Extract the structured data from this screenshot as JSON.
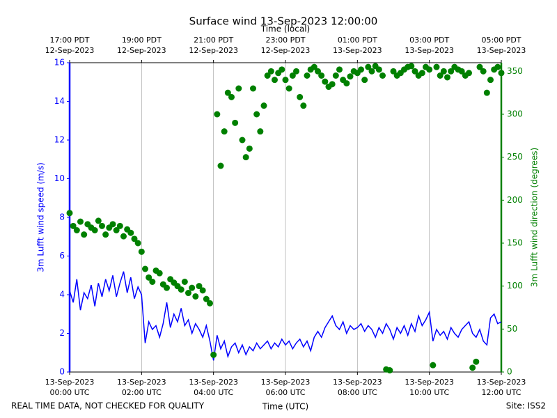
{
  "chart_data": {
    "type": "line",
    "title": "Surface wind 13-Sep-2023 12:00:00",
    "x2label": "Time (local)",
    "xlabel": "Time (UTC)",
    "ylabel": "3m Lufft wind speed (m/s)",
    "y2label": "3m Lufft wind direction (degrees)",
    "footer_left": "REAL TIME DATA, NOT CHECKED FOR QUALITY",
    "footer_right": "Site: ISS2",
    "grid": true,
    "xlim": [
      0,
      12
    ],
    "ylim": [
      0,
      16
    ],
    "y2lim": [
      0,
      360
    ],
    "yticks": [
      0,
      2,
      4,
      6,
      8,
      10,
      12,
      14,
      16
    ],
    "y2ticks": [
      0,
      50,
      100,
      150,
      200,
      250,
      300,
      350
    ],
    "xticks": [
      {
        "value": 0,
        "date": "13-Sep-2023",
        "label": "00:00 UTC"
      },
      {
        "value": 2,
        "date": "13-Sep-2023",
        "label": "02:00 UTC"
      },
      {
        "value": 4,
        "date": "13-Sep-2023",
        "label": "04:00 UTC"
      },
      {
        "value": 6,
        "date": "13-Sep-2023",
        "label": "06:00 UTC"
      },
      {
        "value": 8,
        "date": "13-Sep-2023",
        "label": "08:00 UTC"
      },
      {
        "value": 10,
        "date": "13-Sep-2023",
        "label": "10:00 UTC"
      },
      {
        "value": 12,
        "date": "13-Sep-2023",
        "label": "12:00 UTC"
      }
    ],
    "x2ticks": [
      {
        "value": 0,
        "date": "12-Sep-2023",
        "label": "17:00 PDT"
      },
      {
        "value": 2,
        "date": "12-Sep-2023",
        "label": "19:00 PDT"
      },
      {
        "value": 4,
        "date": "12-Sep-2023",
        "label": "21:00 PDT"
      },
      {
        "value": 6,
        "date": "12-Sep-2023",
        "label": "23:00 PDT"
      },
      {
        "value": 8,
        "date": "13-Sep-2023",
        "label": "01:00 PDT"
      },
      {
        "value": 10,
        "date": "13-Sep-2023",
        "label": "03:00 PDT"
      },
      {
        "value": 12,
        "date": "13-Sep-2023",
        "label": "05:00 PDT"
      }
    ],
    "x": [
      0,
      0.1,
      0.2,
      0.3,
      0.4,
      0.5,
      0.6,
      0.7,
      0.8,
      0.9,
      1,
      1.1,
      1.2,
      1.3,
      1.4,
      1.5,
      1.6,
      1.7,
      1.8,
      1.9,
      2,
      2.1,
      2.2,
      2.3,
      2.4,
      2.5,
      2.6,
      2.7,
      2.8,
      2.9,
      3,
      3.1,
      3.2,
      3.3,
      3.4,
      3.5,
      3.6,
      3.7,
      3.8,
      3.9,
      4,
      4.1,
      4.2,
      4.3,
      4.4,
      4.5,
      4.6,
      4.7,
      4.8,
      4.9,
      5,
      5.1,
      5.2,
      5.3,
      5.4,
      5.5,
      5.6,
      5.7,
      5.8,
      5.9,
      6,
      6.1,
      6.2,
      6.3,
      6.4,
      6.5,
      6.6,
      6.7,
      6.8,
      6.9,
      7,
      7.1,
      7.2,
      7.3,
      7.4,
      7.5,
      7.6,
      7.7,
      7.8,
      7.9,
      8,
      8.1,
      8.2,
      8.3,
      8.4,
      8.5,
      8.6,
      8.7,
      8.8,
      8.9,
      9,
      9.1,
      9.2,
      9.3,
      9.4,
      9.5,
      9.6,
      9.7,
      9.8,
      9.9,
      10,
      10.1,
      10.2,
      10.3,
      10.4,
      10.5,
      10.6,
      10.7,
      10.8,
      10.9,
      11,
      11.1,
      11.2,
      11.3,
      11.4,
      11.5,
      11.6,
      11.7,
      11.8,
      11.9,
      12
    ],
    "series": [
      {
        "color": "#0000ff",
        "axis": "y",
        "style": "line",
        "values": [
          4.2,
          3.6,
          4.8,
          3.2,
          4.1,
          3.8,
          4.5,
          3.4,
          4.6,
          3.9,
          4.8,
          4.2,
          5.0,
          3.9,
          4.6,
          5.2,
          4.1,
          4.9,
          3.8,
          4.4,
          4.0,
          1.5,
          2.6,
          2.2,
          2.4,
          1.8,
          2.5,
          3.6,
          2.3,
          3.0,
          2.6,
          3.3,
          2.4,
          2.7,
          2.0,
          2.5,
          2.2,
          1.8,
          2.4,
          1.6,
          0.6,
          1.9,
          1.2,
          1.6,
          0.8,
          1.3,
          1.5,
          1.0,
          1.4,
          0.9,
          1.3,
          1.1,
          1.5,
          1.2,
          1.4,
          1.6,
          1.2,
          1.5,
          1.3,
          1.7,
          1.4,
          1.6,
          1.2,
          1.5,
          1.7,
          1.3,
          1.6,
          1.1,
          1.8,
          2.1,
          1.8,
          2.3,
          2.6,
          2.9,
          2.4,
          2.2,
          2.6,
          2.0,
          2.4,
          2.2,
          2.3,
          2.5,
          2.1,
          2.4,
          2.2,
          1.8,
          2.3,
          2.0,
          2.5,
          2.2,
          1.7,
          2.3,
          2.0,
          2.4,
          1.9,
          2.5,
          2.1,
          2.9,
          2.4,
          2.7,
          3.1,
          1.6,
          2.2,
          1.9,
          2.1,
          1.7,
          2.3,
          2.0,
          1.8,
          2.2,
          2.4,
          2.6,
          2.0,
          1.8,
          2.2,
          1.6,
          1.4,
          2.8,
          3.0,
          2.5,
          2.6
        ]
      },
      {
        "color": "#008000",
        "axis": "y2",
        "style": "scatter",
        "values": [
          185,
          170,
          165,
          175,
          160,
          172,
          168,
          165,
          176,
          170,
          160,
          168,
          172,
          165,
          170,
          158,
          166,
          162,
          155,
          150,
          140,
          120,
          110,
          105,
          118,
          115,
          102,
          98,
          108,
          104,
          100,
          96,
          105,
          92,
          98,
          88,
          100,
          95,
          85,
          80,
          20,
          300,
          240,
          280,
          325,
          320,
          290,
          330,
          270,
          250,
          260,
          330,
          300,
          280,
          310,
          345,
          350,
          340,
          348,
          352,
          340,
          330,
          345,
          350,
          320,
          310,
          345,
          352,
          355,
          350,
          345,
          338,
          332,
          335,
          345,
          352,
          340,
          336,
          344,
          350,
          348,
          352,
          340,
          355,
          350,
          356,
          352,
          345,
          3,
          2,
          350,
          345,
          348,
          352,
          355,
          356,
          350,
          345,
          348,
          355,
          352,
          8,
          355,
          345,
          350,
          343,
          350,
          355,
          352,
          350,
          345,
          348,
          5,
          12,
          355,
          350,
          325,
          340,
          352,
          355,
          348
        ]
      }
    ]
  }
}
